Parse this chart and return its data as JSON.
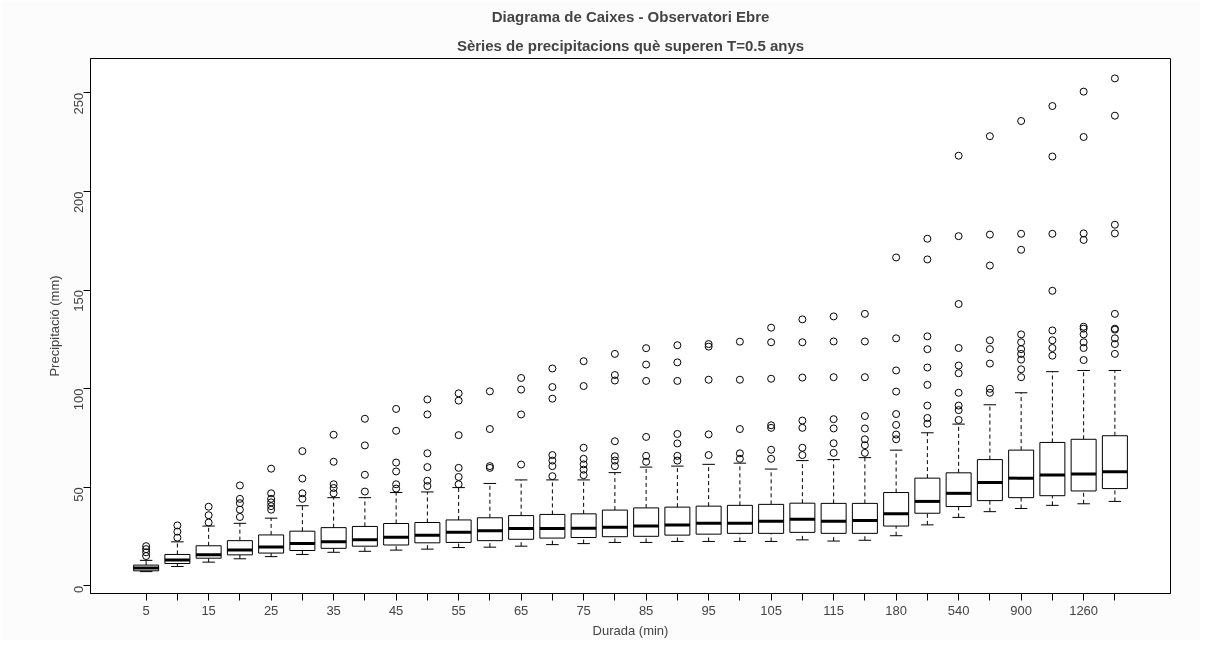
{
  "chart_data": {
    "type": "box",
    "title": "Diagrama de Caixes - Observatori Ebre",
    "subtitle": "Sèries de precipitacions què superen T=0.5 anys",
    "xlabel": "Durada (min)",
    "ylabel": "Precipitació (mm)",
    "categories": [
      "5",
      null,
      "15",
      null,
      "25",
      null,
      "35",
      null,
      "45",
      null,
      "55",
      null,
      "65",
      null,
      "75",
      null,
      "85",
      null,
      "95",
      null,
      "105",
      null,
      "115",
      null,
      "180",
      null,
      "540",
      null,
      "900",
      null,
      "1260",
      null
    ],
    "ylim": [
      -3.9,
      267.4
    ],
    "yticks": [
      0,
      50,
      100,
      150,
      200,
      250
    ],
    "grid": false,
    "boxes": [
      {
        "low": 7.2,
        "q1": 7.6,
        "median": 9.0,
        "q3": 10.5,
        "high": 12.9,
        "outliers": [
          15.1,
          17,
          18.6,
          20.1
        ]
      },
      {
        "low": 9.8,
        "q1": 11.3,
        "median": 13.1,
        "q3": 15.9,
        "high": 22.3,
        "outliers": [
          24.4,
          27.5,
          30.6
        ]
      },
      {
        "low": 12.0,
        "q1": 14,
        "median": 15.7,
        "q3": 20.3,
        "high": 30.3,
        "outliers": [
          32.1,
          35.8,
          40.1
        ]
      },
      {
        "low": 13.7,
        "q1": 15.7,
        "median": 18.1,
        "q3": 22.9,
        "high": 31.7,
        "outliers": [
          34.9,
          38.6,
          41.9,
          44.1,
          50.9
        ]
      },
      {
        "low": 14.8,
        "q1": 16.6,
        "median": 19.7,
        "q3": 25.8,
        "high": 34.3,
        "outliers": [
          38.6,
          40.4,
          42.3,
          44.1,
          46.9,
          59.4
        ]
      },
      {
        "low": 15.9,
        "q1": 17.9,
        "median": 21.4,
        "q3": 27.7,
        "high": 40.6,
        "outliers": [
          44.1,
          46.9,
          54.4,
          68.3
        ]
      },
      {
        "low": 17.0,
        "q1": 19.0,
        "median": 22.3,
        "q3": 29.5,
        "high": 44.7,
        "outliers": [
          46.9,
          49.6,
          51.5,
          62.9,
          76.6
        ]
      },
      {
        "low": 17.5,
        "q1": 20.1,
        "median": 23.4,
        "q3": 30.1,
        "high": 44.7,
        "outliers": [
          47.8,
          56.3,
          71.2,
          84.7
        ]
      },
      {
        "low": 18.1,
        "q1": 20.7,
        "median": 24.6,
        "q3": 31.6,
        "high": 47.3,
        "outliers": [
          49.3,
          51.5,
          58,
          62.5,
          78.6,
          89.7
        ]
      },
      {
        "low": 18.6,
        "q1": 21.8,
        "median": 25.7,
        "q3": 32.1,
        "high": 47.6,
        "outliers": [
          50.6,
          53.3,
          60.2,
          67.2,
          86.9,
          94.5
        ]
      },
      {
        "low": 19.4,
        "q1": 22,
        "median": 27.1,
        "q3": 33.4,
        "high": 49.8,
        "outliers": [
          51.5,
          55.2,
          59.8,
          76.4,
          93.9,
          97.6
        ]
      },
      {
        "low": 19.6,
        "q1": 22.9,
        "median": 27.9,
        "q3": 34.5,
        "high": 51.9,
        "outliers": [
          59.8,
          60.7,
          79.5,
          98.6
        ]
      },
      {
        "low": 20.1,
        "q1": 23.6,
        "median": 29.0,
        "q3": 35.6,
        "high": 53.7,
        "outliers": [
          61.5,
          86.9,
          99.5,
          105.4
        ]
      },
      {
        "low": 20.9,
        "q1": 24.2,
        "median": 29.0,
        "q3": 36.2,
        "high": 53.7,
        "outliers": [
          55.6,
          60.7,
          63.5,
          66.3,
          94.9,
          100.8,
          110.2
        ]
      },
      {
        "low": 21.4,
        "q1": 24.5,
        "median": 29.2,
        "q3": 36.5,
        "high": 53.7,
        "outliers": [
          56.1,
          58.9,
          61.6,
          64.4,
          70,
          101.3,
          113.9
        ]
      },
      {
        "low": 22.0,
        "q1": 24.9,
        "median": 29.7,
        "q3": 38.4,
        "high": 57.4,
        "outliers": [
          60.7,
          63.5,
          65.7,
          73.3,
          104.1,
          106.9,
          117.6
        ]
      },
      {
        "low": 22,
        "q1": 25.1,
        "median": 30.3,
        "q3": 39.5,
        "high": 60.2,
        "outliers": [
          62.9,
          65.9,
          75.5,
          103.9,
          112.2,
          120.5
        ]
      },
      {
        "low": 22.5,
        "q1": 25.7,
        "median": 30.8,
        "q3": 39.9,
        "high": 60.7,
        "outliers": [
          63.5,
          65.9,
          72.2,
          77,
          103.9,
          113.3,
          122
        ]
      },
      {
        "low": 22.5,
        "q1": 26.2,
        "median": 31.7,
        "q3": 40.4,
        "high": 61.6,
        "outliers": [
          66.3,
          76.8,
          104.5,
          121.3,
          122.6
        ]
      },
      {
        "low": 22.5,
        "q1": 26.6,
        "median": 31.7,
        "q3": 40.8,
        "high": 62.2,
        "outliers": [
          64.4,
          67.2,
          79.5,
          104.5,
          123.8
        ]
      },
      {
        "low": 22.5,
        "q1": 26.6,
        "median": 32.7,
        "q3": 41.3,
        "high": 59.2,
        "outliers": [
          64.4,
          69,
          80.1,
          81.4,
          105,
          123.5,
          130.9
        ]
      },
      {
        "low": 23.3,
        "q1": 27.1,
        "median": 33.8,
        "q3": 41.9,
        "high": 63.5,
        "outliers": [
          66.3,
          70,
          80.1,
          83.8,
          105.6,
          123.5,
          135.1
        ]
      },
      {
        "low": 22.7,
        "q1": 26.6,
        "median": 32.7,
        "q3": 41.8,
        "high": 64,
        "outliers": [
          67.4,
          72.3,
          79.8,
          84.5,
          105.8,
          123.9,
          136.6
        ]
      },
      {
        "low": 23.1,
        "q1": 26.6,
        "median": 33.1,
        "q3": 41.8,
        "high": 65,
        "outliers": [
          67.4,
          71.3,
          74.3,
          79.8,
          86.1,
          105.8,
          123.9,
          137.9
        ]
      },
      {
        "low": 25.4,
        "q1": 30.3,
        "median": 36.5,
        "q3": 47.3,
        "high": 68.8,
        "outliers": [
          74.3,
          76.7,
          81.6,
          87.1,
          98.5,
          109.2,
          125.5,
          166.5
        ]
      },
      {
        "low": 30.9,
        "q1": 36.8,
        "median": 42.8,
        "q3": 54.6,
        "high": 77.6,
        "outliers": [
          82.2,
          85.1,
          91.4,
          101.9,
          110.7,
          120,
          126.5,
          165.5,
          176
        ]
      },
      {
        "low": 34.7,
        "q1": 40.2,
        "median": 46.9,
        "q3": 57.3,
        "high": 82,
        "outliers": [
          84.1,
          89.1,
          91.4,
          97.9,
          107.8,
          111.7,
          120.6,
          142.9,
          177.3,
          218.1
        ]
      },
      {
        "low": 37.6,
        "q1": 43.2,
        "median": 52.4,
        "q3": 64,
        "high": 91.8,
        "outliers": [
          97.9,
          99.9,
          112.7,
          120,
          124.5,
          162.4,
          178.1,
          228
        ]
      },
      {
        "low": 39.2,
        "q1": 44.7,
        "median": 54.6,
        "q3": 68.8,
        "high": 97.9,
        "outliers": [
          105.8,
          109.8,
          114.7,
          117.6,
          120,
          123.5,
          127.5,
          170.4,
          178.5,
          235.7
        ]
      },
      {
        "low": 40.8,
        "q1": 45.7,
        "median": 56.2,
        "q3": 72.7,
        "high": 108.6,
        "outliers": [
          116.7,
          120.6,
          124.5,
          129.5,
          149.6,
          178.5,
          217.7,
          243.3
        ]
      },
      {
        "low": 41.6,
        "q1": 48.1,
        "median": 56.7,
        "q3": 74.3,
        "high": 109.2,
        "outliers": [
          114.5,
          120.6,
          123.5,
          127.5,
          130.4,
          131.4,
          175.4,
          178.7,
          227.6,
          250.6
        ]
      },
      {
        "low": 42.8,
        "q1": 49.3,
        "median": 57.9,
        "q3": 76.1,
        "high": 109.2,
        "outliers": [
          117.6,
          122.6,
          125.5,
          129.9,
          130.4,
          137.9,
          178.7,
          183.1,
          238.4,
          257.3
        ]
      }
    ]
  }
}
